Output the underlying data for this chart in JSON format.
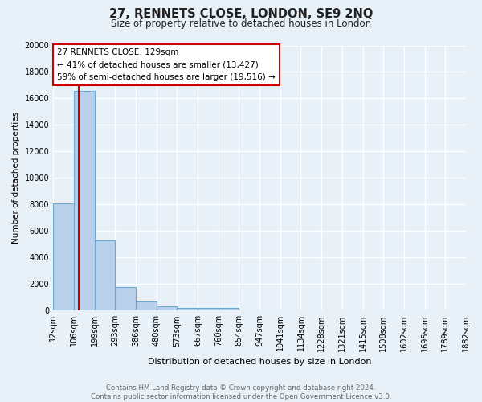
{
  "title": "27, RENNETS CLOSE, LONDON, SE9 2NQ",
  "subtitle": "Size of property relative to detached houses in London",
  "xlabel": "Distribution of detached houses by size in London",
  "ylabel": "Number of detached properties",
  "bin_labels": [
    "12sqm",
    "106sqm",
    "199sqm",
    "293sqm",
    "386sqm",
    "480sqm",
    "573sqm",
    "667sqm",
    "760sqm",
    "854sqm",
    "947sqm",
    "1041sqm",
    "1134sqm",
    "1228sqm",
    "1321sqm",
    "1415sqm",
    "1508sqm",
    "1602sqm",
    "1695sqm",
    "1789sqm",
    "1882sqm"
  ],
  "bar_heights": [
    8100,
    16600,
    5300,
    1750,
    700,
    300,
    220,
    200,
    185,
    0,
    0,
    0,
    0,
    0,
    0,
    0,
    0,
    0,
    0,
    0
  ],
  "bar_color": "#b8d0ea",
  "bar_edge_color": "#6aaad4",
  "background_color": "#e8f0f8",
  "grid_color": "#ffffff",
  "vline_color": "#cc0000",
  "annotation_text": "27 RENNETS CLOSE: 129sqm\n← 41% of detached houses are smaller (13,427)\n59% of semi-detached houses are larger (19,516) →",
  "annotation_box_color": "#ffffff",
  "annotation_box_edge": "#cc0000",
  "footnote": "Contains HM Land Registry data © Crown copyright and database right 2024.\nContains public sector information licensed under the Open Government Licence v3.0.",
  "ylim": [
    0,
    20000
  ],
  "yticks": [
    0,
    2000,
    4000,
    6000,
    8000,
    10000,
    12000,
    14000,
    16000,
    18000,
    20000
  ]
}
